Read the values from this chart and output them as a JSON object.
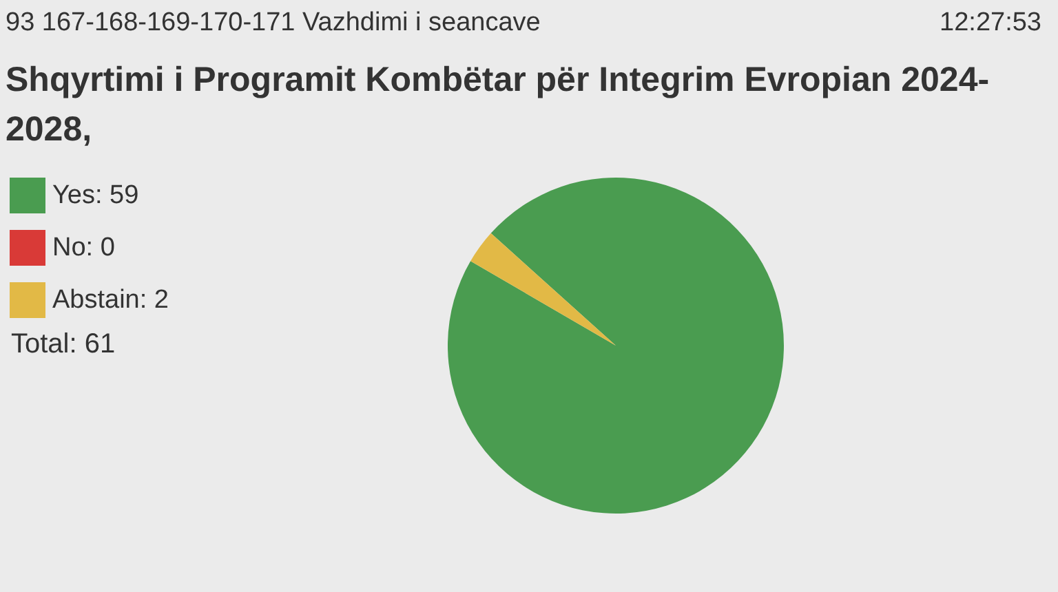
{
  "chart_data": {
    "type": "pie",
    "title": "Shqyrtimi i Programit Kombëtar për Integrim Evropian 2024-2028,",
    "categories": [
      "Yes: 59",
      "No: 0",
      "Abstain: 2"
    ],
    "values": [
      59,
      0,
      2
    ],
    "colors": [
      "#4a9c50",
      "#d93a37",
      "#e2b946"
    ],
    "legend": "left",
    "annotations": [
      "93 167-168-169-170-171 Vazhdimi i seancave",
      "12:27:53",
      "Total: 61"
    ]
  }
}
